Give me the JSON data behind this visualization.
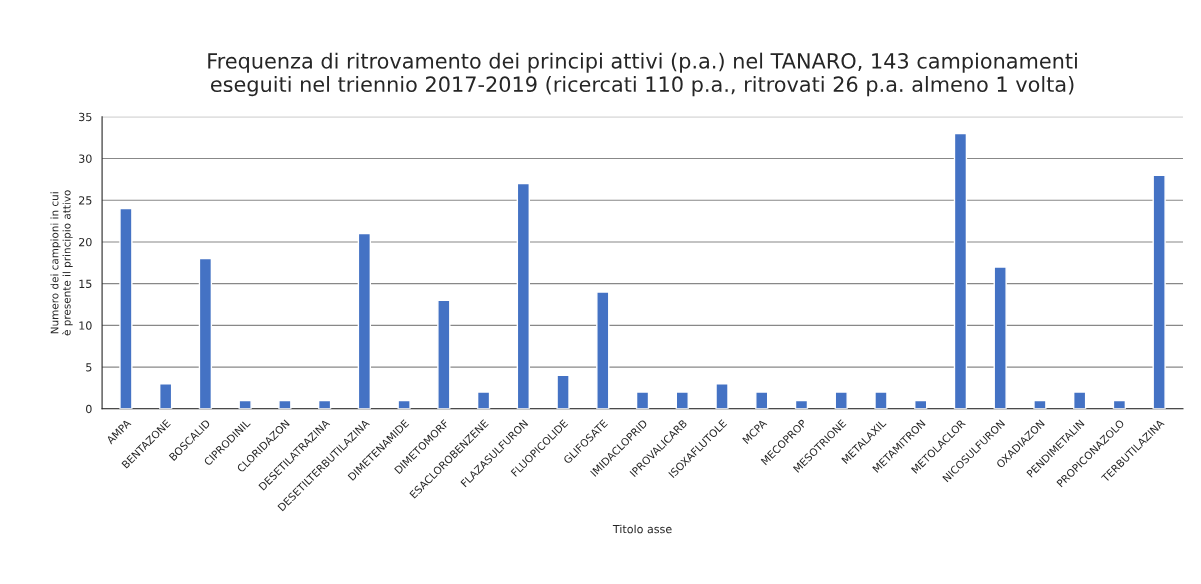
{
  "chart_data": {
    "type": "bar",
    "title": "Frequenza di ritrovamento dei principi attivi (p.a.) nel TANARO, 143 campionamenti\neseguiti nel triennio 2017-2019 (ricercati 110 p.a., ritrovati 26 p.a. almeno 1 volta)",
    "xlabel": "Titolo asse",
    "ylabel": "Numero dei campioni in cui\nè presente il principio attivo",
    "categories": [
      "AMPA",
      "BENTAZONE",
      "BOSCALID",
      "CIPRODINIL",
      "CLORIDAZON",
      "DESETILATRAZINA",
      "DESETILTERBUTILAZINA",
      "DIMETENAMIDE",
      "DIMETOMORF",
      "ESACLOROBENZENE",
      "FLAZASULFURON",
      "FLUOPICOLIDE",
      "GLIFOSATE",
      "IMIDACLOPRID",
      "IPROVALICARB",
      "ISOXAFLUTOLE",
      "MCPA",
      "MECOPROP",
      "MESOTRIONE",
      "METALAXIL",
      "METAMITRON",
      "METOLACLOR",
      "NICOSULFURON",
      "OXADIAZON",
      "PENDIMETALIN",
      "PROPICONAZOLO",
      "TERBUTILAZINA"
    ],
    "values": [
      24,
      3,
      18,
      1,
      1,
      1,
      21,
      1,
      13,
      2,
      27,
      4,
      14,
      2,
      2,
      3,
      2,
      1,
      2,
      2,
      1,
      33,
      17,
      1,
      2,
      1,
      28
    ],
    "color": "#4472c4",
    "ylim": [
      0,
      35
    ],
    "yticks": [
      0,
      5,
      10,
      15,
      20,
      25,
      30,
      35
    ],
    "grid": "y",
    "legend": false
  }
}
